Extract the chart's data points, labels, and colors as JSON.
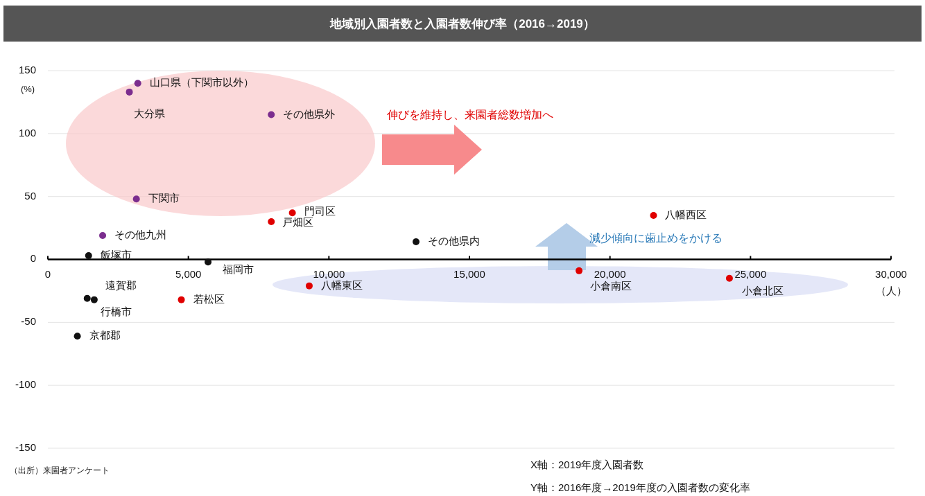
{
  "chart_data": {
    "type": "scatter",
    "title": "地域別入園者数と入園者数伸び率（2016→2019）",
    "xlabel": "（人）",
    "ylabel": "(%)",
    "xlim": [
      0,
      30000
    ],
    "xticks": [
      0,
      {
        "value": 5000,
        "label": "5,000"
      },
      {
        "value": 10000,
        "label": "10,000"
      },
      {
        "value": 15000,
        "label": "15,000"
      },
      {
        "value": 20000,
        "label": "20,000"
      },
      {
        "value": 25000,
        "label": "25,000"
      },
      {
        "value": 30000,
        "label": "30,000"
      }
    ],
    "ylim": [
      -150,
      150
    ],
    "yticks": [
      -150,
      -100,
      -50,
      0,
      50,
      100,
      150
    ],
    "grid": "y",
    "marker": "circle",
    "series": [
      {
        "color": "#7b2d8e",
        "x": [
          3200,
          2900,
          7950,
          3150,
          1950
        ],
        "values": [
          140,
          133,
          115,
          48,
          19
        ]
      },
      {
        "color": "#e00000",
        "x": [
          8700,
          7950,
          21550,
          4750,
          9300,
          18900,
          24250
        ],
        "values": [
          37,
          30,
          35,
          -32,
          -21,
          -9,
          -15
        ]
      },
      {
        "color": "#111111",
        "x": [
          13100,
          1450,
          5700,
          1400,
          1650,
          1050
        ],
        "values": [
          14,
          3,
          -2,
          -31,
          -32,
          -61
        ]
      }
    ],
    "annotations": [
      {
        "text": "山口県（下関市以外）",
        "x": 3200,
        "y": 140
      },
      {
        "text": "大分県",
        "x": 2900,
        "y": 133
      },
      {
        "text": "その他県外",
        "x": 7950,
        "y": 115
      },
      {
        "text": "下関市",
        "x": 3150,
        "y": 48
      },
      {
        "text": "その他九州",
        "x": 1950,
        "y": 19
      },
      {
        "text": "門司区",
        "x": 8700,
        "y": 37
      },
      {
        "text": "戸畑区",
        "x": 7950,
        "y": 30
      },
      {
        "text": "八幡西区",
        "x": 21550,
        "y": 35
      },
      {
        "text": "その他県内",
        "x": 13100,
        "y": 14
      },
      {
        "text": "飯塚市",
        "x": 1450,
        "y": 3
      },
      {
        "text": "福岡市",
        "x": 5700,
        "y": -2
      },
      {
        "text": "遠賀郡",
        "x": 1400,
        "y": -31
      },
      {
        "text": "行橋市",
        "x": 1650,
        "y": -32
      },
      {
        "text": "京都郡",
        "x": 1050,
        "y": -61
      },
      {
        "text": "若松区",
        "x": 4750,
        "y": -32
      },
      {
        "text": "八幡東区",
        "x": 9300,
        "y": -21
      },
      {
        "text": "小倉南区",
        "x": 18900,
        "y": -9
      },
      {
        "text": "小倉北区",
        "x": 24250,
        "y": -15
      },
      "伸びを維持し、来園者総数増加へ",
      "減少傾向に歯止めをかける",
      "（出所）来園者アンケート",
      "X軸：2019年度入園者数",
      "Y軸：2016年度→2019年度の入園者数の変化率"
    ]
  }
}
